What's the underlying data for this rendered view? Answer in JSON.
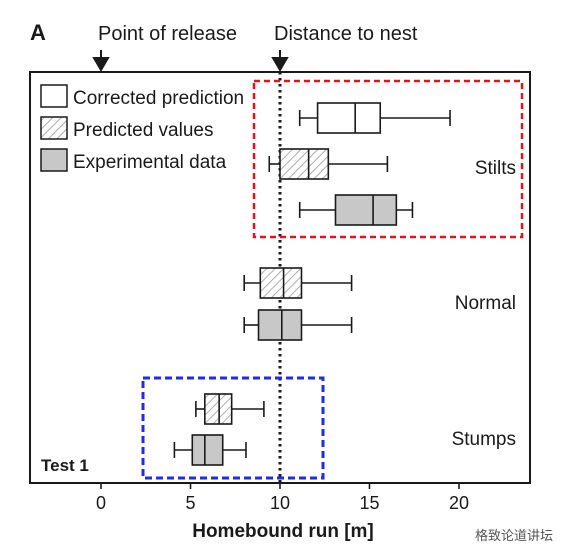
{
  "chart_data": {
    "type": "boxplot",
    "panel_letter": "A",
    "annotations": {
      "release_label": "Point of release",
      "release_x": 0,
      "nest_label": "Distance to nest",
      "nest_x": 10,
      "test_label": "Test 1"
    },
    "xlabel": "Homebound run [m]",
    "xlim": [
      -4,
      24
    ],
    "xticks": [
      0,
      5,
      10,
      15,
      20
    ],
    "xtick_labels": [
      "0",
      "5",
      "10",
      "15",
      "20"
    ],
    "grid": false,
    "legend": {
      "placement": "top-left",
      "items": [
        {
          "label": "Corrected prediction",
          "style": "open"
        },
        {
          "label": "Predicted values",
          "style": "hatched"
        },
        {
          "label": "Experimental data",
          "style": "filled"
        }
      ]
    },
    "groups": [
      {
        "label": "Stilts",
        "highlight": "red"
      },
      {
        "label": "Normal",
        "highlight": ""
      },
      {
        "label": "Stumps",
        "highlight": "blue"
      }
    ],
    "boxes": [
      {
        "group": "Stilts",
        "series": "Corrected prediction",
        "style": "open",
        "min": 11.1,
        "q1": 12.1,
        "median": 14.2,
        "q3": 15.6,
        "max": 19.5
      },
      {
        "group": "Stilts",
        "series": "Predicted values",
        "style": "hatched",
        "min": 9.4,
        "q1": 10.0,
        "median": 11.6,
        "q3": 12.7,
        "max": 16.0
      },
      {
        "group": "Stilts",
        "series": "Experimental data",
        "style": "filled",
        "min": 11.1,
        "q1": 13.1,
        "median": 15.2,
        "q3": 16.5,
        "max": 17.4
      },
      {
        "group": "Normal",
        "series": "Predicted values",
        "style": "hatched",
        "min": 8.0,
        "q1": 8.9,
        "median": 10.2,
        "q3": 11.2,
        "max": 14.0
      },
      {
        "group": "Normal",
        "series": "Experimental data",
        "style": "filled",
        "min": 8.0,
        "q1": 8.8,
        "median": 10.1,
        "q3": 11.2,
        "max": 14.0
      },
      {
        "group": "Stumps",
        "series": "Predicted values",
        "style": "hatched",
        "min": 5.3,
        "q1": 5.8,
        "median": 6.6,
        "q3": 7.3,
        "max": 9.1
      },
      {
        "group": "Stumps",
        "series": "Experimental data",
        "style": "filled",
        "min": 4.1,
        "q1": 5.1,
        "median": 5.8,
        "q3": 6.8,
        "max": 8.1
      }
    ],
    "colors": {
      "filled": "#c8c8c8",
      "hatch": "#9a9a9a",
      "stroke": "#1a1a1a",
      "red_highlight": "#e0141e",
      "blue_highlight": "#1f2de6"
    }
  },
  "watermark": "格致论道讲坛"
}
